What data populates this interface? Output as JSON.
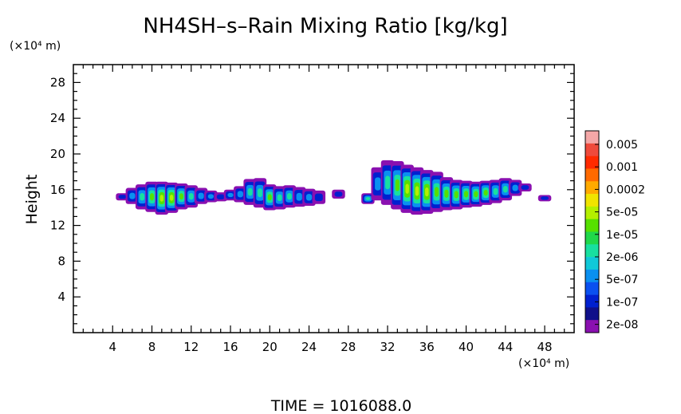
{
  "chart_data": {
    "type": "heatmap",
    "title": "NH4SH–s–Rain Mixing Ratio [kg/kg]",
    "ylabel": "Height",
    "y_unit": "(×10⁴ m)",
    "x_unit": "(×10⁴ m)",
    "footer": "TIME  =  1016088.0",
    "xlim": [
      0,
      51
    ],
    "ylim": [
      0,
      30
    ],
    "x_ticks": [
      4,
      8,
      12,
      16,
      20,
      24,
      28,
      32,
      36,
      40,
      44,
      48
    ],
    "y_ticks": [
      4,
      8,
      12,
      16,
      20,
      24,
      28
    ],
    "colorbar": {
      "labels": [
        "0.005",
        "0.001",
        "0.0002",
        "5e-05",
        "1e-05",
        "2e-06",
        "5e-07",
        "1e-07",
        "2e-08"
      ],
      "colors": [
        "#f4a7a7",
        "#ef4a3c",
        "#ff2a00",
        "#ff6a00",
        "#ffaa00",
        "#f0e400",
        "#b4f000",
        "#56e000",
        "#20d84a",
        "#18e0a0",
        "#10c8d8",
        "#0a90f0",
        "#0a50f0",
        "#0020d0",
        "#10108a",
        "#8a10b0"
      ]
    },
    "regions": [
      {
        "x": 5,
        "ybot": 14.8,
        "ytop": 15.6,
        "level": 1
      },
      {
        "x": 6,
        "ybot": 14.4,
        "ytop": 16.2,
        "level": 2
      },
      {
        "x": 7,
        "ybot": 13.8,
        "ytop": 16.6,
        "level": 3
      },
      {
        "x": 8,
        "ybot": 13.5,
        "ytop": 16.9,
        "level": 4
      },
      {
        "x": 9,
        "ybot": 13.2,
        "ytop": 16.9,
        "level": 5
      },
      {
        "x": 10,
        "ybot": 13.4,
        "ytop": 16.8,
        "level": 5
      },
      {
        "x": 11,
        "ybot": 13.8,
        "ytop": 16.7,
        "level": 4
      },
      {
        "x": 12,
        "ybot": 14.0,
        "ytop": 16.5,
        "level": 3
      },
      {
        "x": 13,
        "ybot": 14.4,
        "ytop": 16.2,
        "level": 2
      },
      {
        "x": 14,
        "ybot": 14.6,
        "ytop": 15.9,
        "level": 2
      },
      {
        "x": 15,
        "ybot": 14.7,
        "ytop": 15.7,
        "level": 1
      },
      {
        "x": 16,
        "ybot": 14.8,
        "ytop": 16.0,
        "level": 2
      },
      {
        "x": 17,
        "ybot": 14.6,
        "ytop": 16.4,
        "level": 2
      },
      {
        "x": 18,
        "ybot": 14.3,
        "ytop": 17.2,
        "level": 3
      },
      {
        "x": 19,
        "ybot": 14.0,
        "ytop": 17.3,
        "level": 3
      },
      {
        "x": 20,
        "ybot": 13.7,
        "ytop": 16.6,
        "level": 4
      },
      {
        "x": 21,
        "ybot": 13.8,
        "ytop": 16.4,
        "level": 3
      },
      {
        "x": 22,
        "ybot": 14.0,
        "ytop": 16.5,
        "level": 3
      },
      {
        "x": 23,
        "ybot": 14.1,
        "ytop": 16.3,
        "level": 2
      },
      {
        "x": 24,
        "ybot": 14.2,
        "ytop": 16.1,
        "level": 2
      },
      {
        "x": 25,
        "ybot": 14.4,
        "ytop": 15.9,
        "level": 1
      },
      {
        "x": 27,
        "ybot": 15.0,
        "ytop": 16.0,
        "level": 1
      },
      {
        "x": 30,
        "ybot": 14.4,
        "ytop": 15.6,
        "level": 3
      },
      {
        "x": 31,
        "ybot": 14.8,
        "ytop": 18.5,
        "level": 2
      },
      {
        "x": 32,
        "ybot": 14.3,
        "ytop": 19.3,
        "level": 3
      },
      {
        "x": 33,
        "ybot": 13.8,
        "ytop": 19.2,
        "level": 4
      },
      {
        "x": 34,
        "ybot": 13.4,
        "ytop": 18.8,
        "level": 5
      },
      {
        "x": 35,
        "ybot": 13.2,
        "ytop": 18.5,
        "level": 5
      },
      {
        "x": 36,
        "ybot": 13.3,
        "ytop": 18.2,
        "level": 5
      },
      {
        "x": 37,
        "ybot": 13.5,
        "ytop": 18.0,
        "level": 4
      },
      {
        "x": 38,
        "ybot": 13.7,
        "ytop": 17.4,
        "level": 4
      },
      {
        "x": 39,
        "ybot": 13.8,
        "ytop": 17.1,
        "level": 4
      },
      {
        "x": 40,
        "ybot": 14.0,
        "ytop": 17.0,
        "level": 4
      },
      {
        "x": 41,
        "ybot": 14.1,
        "ytop": 16.9,
        "level": 4
      },
      {
        "x": 42,
        "ybot": 14.3,
        "ytop": 17.0,
        "level": 4
      },
      {
        "x": 43,
        "ybot": 14.5,
        "ytop": 17.1,
        "level": 3
      },
      {
        "x": 44,
        "ybot": 14.8,
        "ytop": 17.3,
        "level": 3
      },
      {
        "x": 45,
        "ybot": 15.3,
        "ytop": 17.1,
        "level": 2
      },
      {
        "x": 46,
        "ybot": 15.8,
        "ytop": 16.7,
        "level": 1
      },
      {
        "x": 48,
        "ybot": 14.7,
        "ytop": 15.4,
        "level": 1
      }
    ]
  }
}
